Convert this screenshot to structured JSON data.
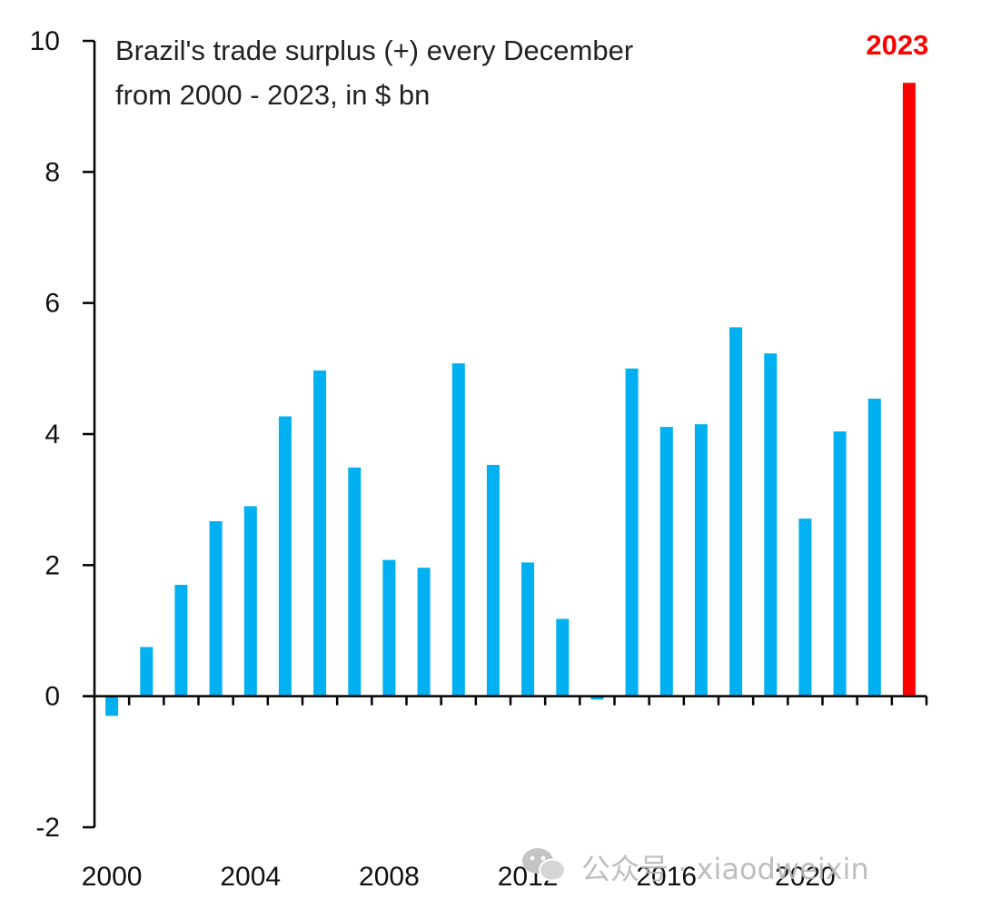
{
  "colors": {
    "bar": "#00b0f0",
    "highlight": "#ff0000",
    "axis": "#000000",
    "watermark": "#b8b8b8"
  },
  "watermark": {
    "icon": "wechat-icon",
    "text": "公众号 · xiaodweixin"
  },
  "chart_data": {
    "type": "bar",
    "title_lines": [
      "Brazil's trade surplus (+) every December",
      "from 2000  - 2023,  in $ bn"
    ],
    "xlabel": "",
    "ylabel": "",
    "ylim": [
      -2,
      10
    ],
    "yticks": [
      -2,
      0,
      2,
      4,
      6,
      8,
      10
    ],
    "xtick_labels": [
      "2000",
      "2004",
      "2008",
      "2012",
      "2016",
      "2020"
    ],
    "categories": [
      "2000",
      "2001",
      "2002",
      "2003",
      "2004",
      "2005",
      "2006",
      "2007",
      "2008",
      "2009",
      "2010",
      "2011",
      "2012",
      "2013",
      "2014",
      "2015",
      "2016",
      "2017",
      "2018",
      "2019",
      "2020",
      "2021",
      "2022",
      "2023"
    ],
    "values": [
      -0.3,
      0.75,
      1.7,
      2.67,
      2.9,
      4.27,
      4.97,
      3.49,
      2.08,
      1.96,
      5.08,
      3.53,
      2.04,
      1.18,
      -0.05,
      5.0,
      4.11,
      4.15,
      5.63,
      5.23,
      2.71,
      4.04,
      4.54,
      9.36
    ],
    "highlight_category": "2023",
    "highlight_label": "2023",
    "grid": false,
    "legend": "none"
  }
}
